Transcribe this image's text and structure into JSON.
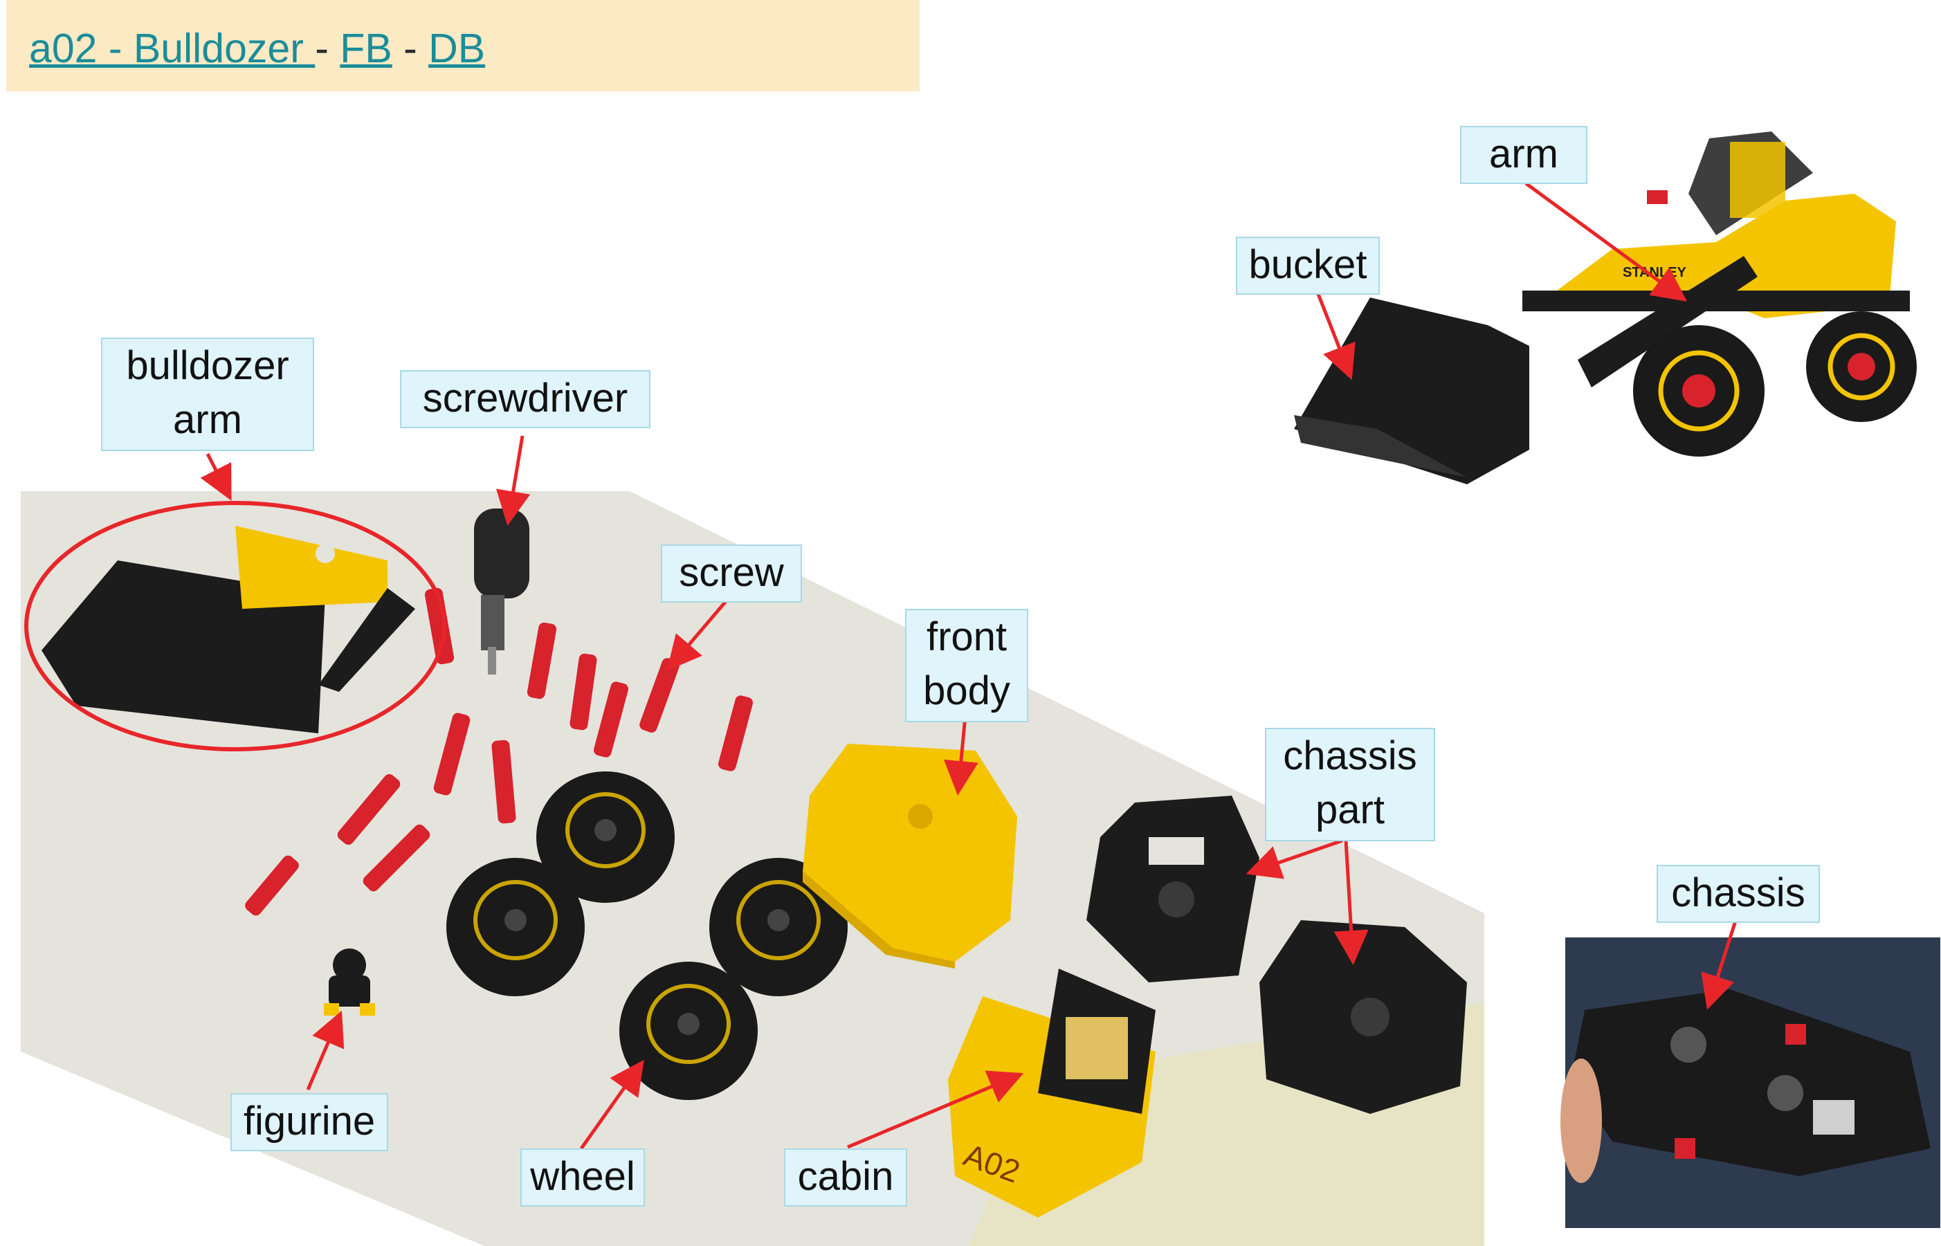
{
  "header": {
    "title_link": "a02 - Bulldozer ",
    "separator": " - ",
    "fb_link": "FB",
    "db_link": "DB"
  },
  "labels": {
    "bulldozer_arm": [
      "bulldozer",
      "arm"
    ],
    "screwdriver": "screwdriver",
    "screw": "screw",
    "front_body": [
      "front",
      "body"
    ],
    "chassis_part": [
      "chassis",
      "part"
    ],
    "figurine": "figurine",
    "wheel": "wheel",
    "cabin": "cabin",
    "bucket": "bucket",
    "arm": "arm",
    "chassis": "chassis"
  },
  "markings": {
    "brand": "STANLEY",
    "cabin_tag": "A02"
  },
  "colors": {
    "label_bg": "#dff4fb",
    "label_border": "#a9d8e6",
    "arrow": "#e8262a",
    "toy_yellow": "#f5c400",
    "toy_black": "#1c1c1c",
    "screw_red": "#d8222c",
    "link": "#1a8c9a",
    "header_bg": "#fbeac4"
  }
}
